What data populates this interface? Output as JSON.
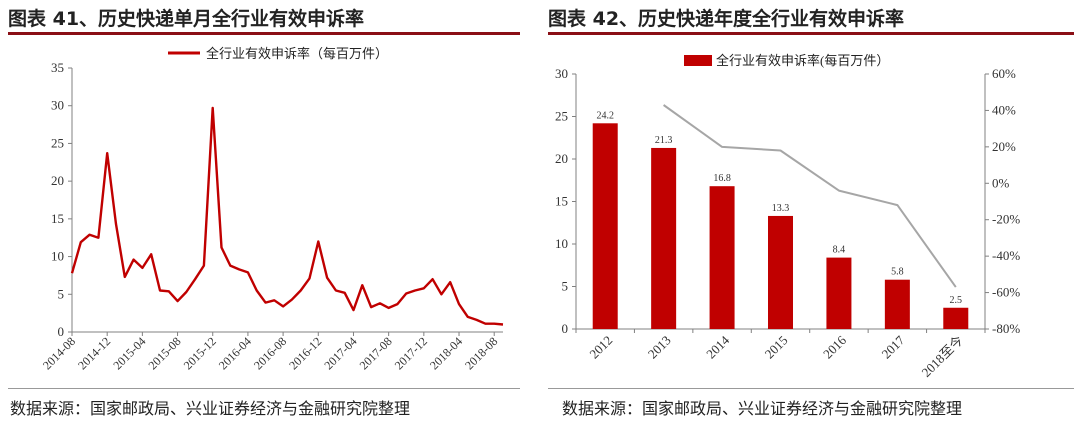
{
  "left": {
    "title": "图表 41、历史快递单月全行业有效申诉率",
    "source": "数据来源：国家邮政局、兴业证券经济与金融研究院整理",
    "chart_data": {
      "type": "line",
      "series": [
        {
          "name": "全行业有效申诉率（每百万件）",
          "color": "#c00000",
          "values": [
            7.8,
            11.9,
            12.9,
            12.5,
            23.7,
            14.3,
            7.3,
            9.6,
            8.5,
            10.3,
            5.5,
            5.4,
            4.1,
            5.3,
            7.0,
            8.8,
            29.7,
            11.2,
            8.8,
            8.3,
            7.9,
            5.5,
            3.9,
            4.2,
            3.4,
            4.3,
            5.5,
            7.1,
            12.0,
            7.2,
            5.5,
            5.2,
            2.9,
            6.2,
            3.3,
            3.8,
            3.2,
            3.7,
            5.1,
            5.5,
            5.8,
            7.0,
            5.0,
            6.6,
            3.7,
            2.0,
            1.6,
            1.1,
            1.1,
            1.0
          ]
        }
      ],
      "x_tick_labels": [
        "2014-08",
        "2014-12",
        "2015-04",
        "2015-08",
        "2015-12",
        "2016-04",
        "2016-08",
        "2016-12",
        "2017-04",
        "2017-08",
        "2017-12",
        "2018-04",
        "2018-08"
      ],
      "ylim": [
        0,
        35
      ],
      "yticks": [
        0,
        5,
        10,
        15,
        20,
        25,
        30,
        35
      ],
      "legend_position": "top-center",
      "grid": false
    }
  },
  "right": {
    "title": "图表 42、历史快递年度全行业有效申诉率",
    "source": "数据来源：国家邮政局、兴业证券经济与金融研究院整理",
    "chart_data": {
      "type": "bar",
      "categories": [
        "2012",
        "2013",
        "2014",
        "2015",
        "2016",
        "2017",
        "2018至今"
      ],
      "series": [
        {
          "name": "全行业有效申诉率(每百万件）",
          "type": "bar",
          "axis": "left",
          "color": "#c00000",
          "values": [
            24.2,
            21.3,
            16.8,
            13.3,
            8.4,
            5.8,
            2.5
          ],
          "labels": [
            "24.2",
            "21.3",
            "16.8",
            "13.3",
            "8.4",
            "5.8",
            "2.5"
          ]
        },
        {
          "type": "line",
          "axis": "right",
          "color": "#a6a6a6",
          "values": [
            null,
            43,
            20,
            18,
            -4,
            -12,
            -57
          ]
        }
      ],
      "ylim": [
        0,
        30
      ],
      "yticks": [
        0,
        5,
        10,
        15,
        20,
        25,
        30
      ],
      "y2lim": [
        -80,
        60
      ],
      "y2ticks": [
        "-80%",
        "-60%",
        "-40%",
        "-20%",
        "0%",
        "20%",
        "40%",
        "60%"
      ],
      "legend_position": "top-center",
      "grid": false
    }
  }
}
